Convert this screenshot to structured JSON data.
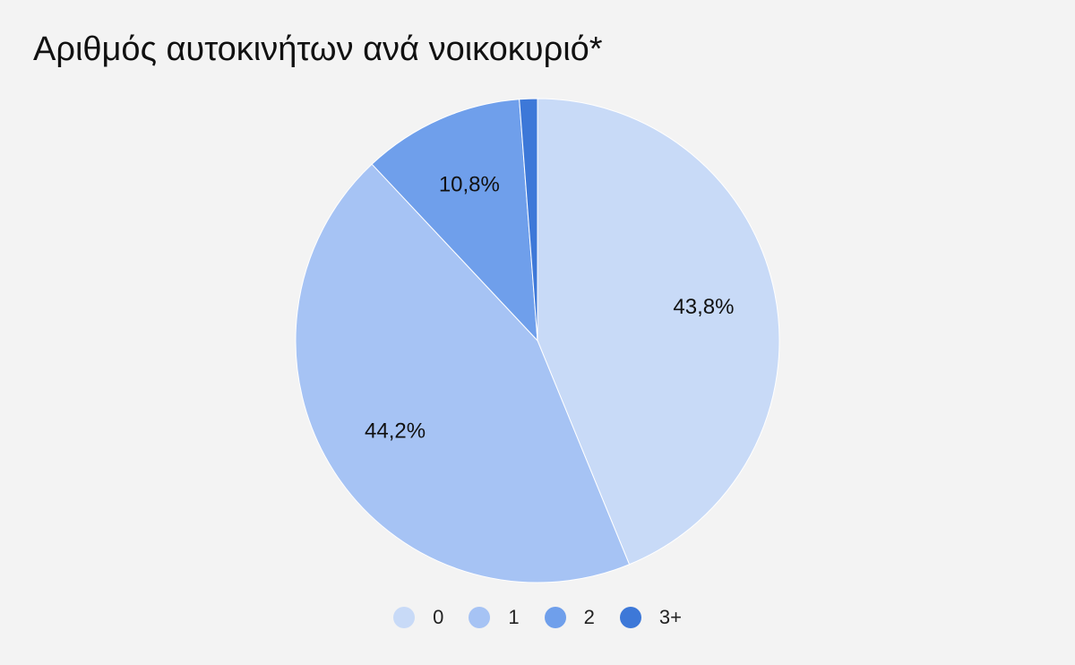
{
  "chart_data": {
    "type": "pie",
    "title": "Αριθμός αυτοκινήτων ανά νοικοκυριό*",
    "start_angle_deg": 0,
    "direction": "clockwise",
    "legend_position": "bottom",
    "slices": [
      {
        "label": "0",
        "value": 43.8,
        "display": "43,8%",
        "color": "#c8daf7"
      },
      {
        "label": "1",
        "value": 44.2,
        "display": "44,2%",
        "color": "#a6c3f4"
      },
      {
        "label": "2",
        "value": 10.8,
        "display": "10,8%",
        "color": "#6f9feb"
      },
      {
        "label": "3+",
        "value": 1.2,
        "display": "",
        "color": "#3d78d8"
      }
    ]
  }
}
